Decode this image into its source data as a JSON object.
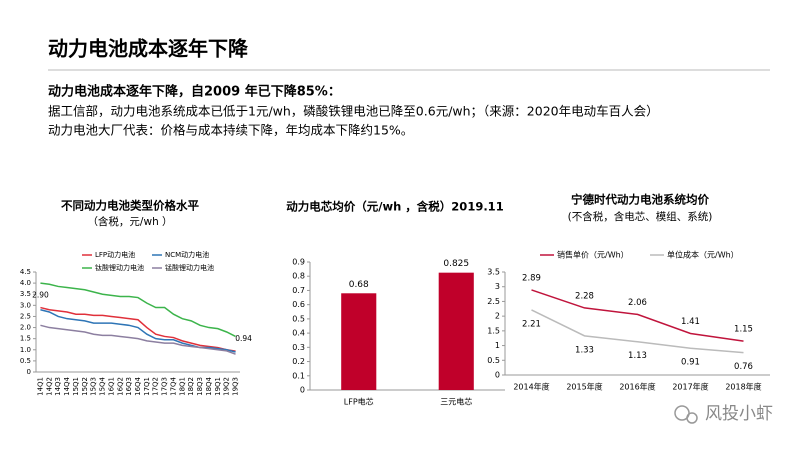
{
  "heading": "动力电池成本逐年下降",
  "lead": "动力电池成本逐年下降，自2009 年已下降85%：",
  "lines": [
    "据工信部，动力电池系统成本已低于1元/wh，磷酸铁锂电池已降至0.6元/wh；（来源：2020年电动车百人会）",
    "动力电池大厂代表：价格与成本持续下降，年均成本下降约15%。"
  ],
  "watermark": "风投小虾",
  "chart_data": [
    {
      "type": "line",
      "title": "不同动力电池类型价格水平",
      "subtitle": "（含税，元/wh ）",
      "categories": [
        "14Q1",
        "14Q2",
        "14Q3",
        "14Q4",
        "15Q1",
        "15Q2",
        "15Q3",
        "15Q4",
        "16Q1",
        "16Q2",
        "16Q3",
        "16Q4",
        "17Q1",
        "17Q2",
        "17Q3",
        "17Q4",
        "18Q1",
        "18Q2",
        "18Q3",
        "18Q4",
        "19Q1",
        "19Q2",
        "19Q3"
      ],
      "series": [
        {
          "name": "LFP动力电池",
          "color": "#e0303a",
          "values": [
            2.9,
            2.8,
            2.75,
            2.7,
            2.6,
            2.6,
            2.55,
            2.55,
            2.5,
            2.45,
            2.4,
            2.35,
            2.0,
            1.7,
            1.6,
            1.55,
            1.4,
            1.3,
            1.2,
            1.15,
            1.1,
            1.0,
            0.94
          ],
          "value_labels": [
            "2.90",
            null,
            null,
            null,
            null,
            null,
            null,
            null,
            null,
            null,
            null,
            null,
            null,
            null,
            null,
            null,
            null,
            null,
            null,
            null,
            null,
            null,
            "0.94"
          ]
        },
        {
          "name": "NCM动力电池",
          "color": "#2e75b6",
          "values": [
            2.8,
            2.7,
            2.5,
            2.4,
            2.35,
            2.3,
            2.2,
            2.2,
            2.2,
            2.15,
            2.1,
            2.0,
            1.7,
            1.5,
            1.45,
            1.45,
            1.3,
            1.2,
            1.1,
            1.1,
            1.05,
            1.0,
            0.9
          ]
        },
        {
          "name": "钛酸锂动力电池",
          "color": "#3cb44b",
          "values": [
            4.0,
            3.95,
            3.85,
            3.8,
            3.75,
            3.7,
            3.6,
            3.5,
            3.45,
            3.4,
            3.4,
            3.35,
            3.1,
            2.9,
            2.9,
            2.6,
            2.4,
            2.3,
            2.1,
            2.0,
            1.95,
            1.8,
            1.6
          ]
        },
        {
          "name": "锰酸锂动力电池",
          "color": "#8c7fa0",
          "values": [
            2.1,
            2.0,
            1.95,
            1.9,
            1.85,
            1.8,
            1.7,
            1.65,
            1.65,
            1.6,
            1.55,
            1.5,
            1.4,
            1.35,
            1.3,
            1.3,
            1.2,
            1.15,
            1.1,
            1.05,
            1.0,
            0.95,
            0.8
          ]
        }
      ],
      "ylim": [
        0,
        4.5
      ],
      "yticks": [
        0,
        0.5,
        {
          "value": 1,
          "label": "1.0"
        },
        1.5,
        {
          "value": 2,
          "label": "2.0"
        },
        2.5,
        {
          "value": 3,
          "label": "3.0"
        },
        3.5,
        {
          "value": 4,
          "label": "4.0"
        },
        4.5
      ]
    },
    {
      "type": "bar",
      "title": "动力电芯均价（元/wh ，含税）2019.11",
      "categories": [
        "LFP电芯",
        "三元电芯"
      ],
      "values": [
        0.68,
        0.825
      ],
      "color": "#c0002a",
      "ylim": [
        0,
        0.9
      ],
      "yticks": [
        0,
        0.1,
        0.2,
        0.3,
        0.4,
        0.5,
        0.6,
        0.7,
        0.8,
        0.9
      ],
      "data_labels": true
    },
    {
      "type": "line",
      "title": "宁德时代动力电池系统均价",
      "subtitle": "(不含税，含电芯、模组、系统)",
      "categories": [
        "2014年度",
        "2015年度",
        "2016年度",
        "2017年度",
        "2018年度"
      ],
      "series": [
        {
          "name": "销售单价（元/Wh）",
          "color": "#c0143c",
          "values": [
            2.89,
            2.28,
            2.06,
            1.41,
            1.15
          ]
        },
        {
          "name": "单位成本（元/Wh）",
          "color": "#bbbbbb",
          "values": [
            2.21,
            1.33,
            1.13,
            0.91,
            0.76
          ]
        }
      ],
      "ylim": [
        0,
        3.5
      ],
      "yticks": [
        0,
        0.5,
        1,
        1.5,
        2,
        2.5,
        3,
        3.5
      ],
      "data_labels": true
    }
  ]
}
